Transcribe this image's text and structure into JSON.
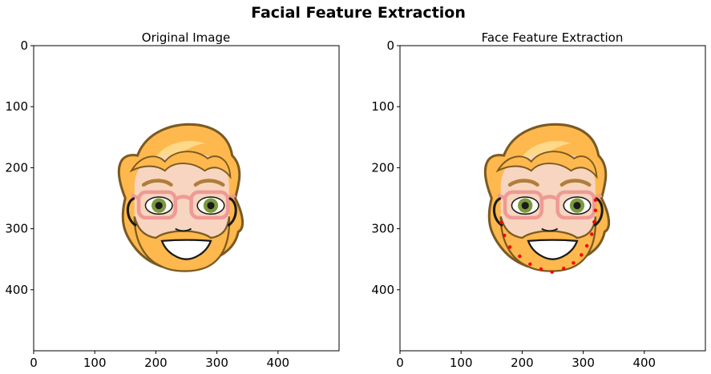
{
  "figure": {
    "suptitle": "Facial Feature Extraction"
  },
  "chart_data": [
    {
      "type": "image",
      "title": "Original Image",
      "xlim": [
        0,
        500
      ],
      "ylim": [
        500,
        0
      ],
      "xticks": [
        0,
        100,
        200,
        300,
        400
      ],
      "yticks": [
        0,
        100,
        200,
        300,
        400
      ],
      "image": "cartoon face: orange hair, pink glasses, orange beard",
      "points": []
    },
    {
      "type": "scatter",
      "title": "Face Feature Extraction",
      "xlim": [
        0,
        500
      ],
      "ylim": [
        500,
        0
      ],
      "xticks": [
        0,
        100,
        200,
        300,
        400
      ],
      "yticks": [
        0,
        100,
        200,
        300,
        400
      ],
      "image": "cartoon face: orange hair, pink glasses, orange beard",
      "marker_color": "#ff0000",
      "points": [
        {
          "x": 166,
          "y": 290
        },
        {
          "x": 171,
          "y": 311
        },
        {
          "x": 180,
          "y": 330
        },
        {
          "x": 196,
          "y": 345
        },
        {
          "x": 213,
          "y": 358
        },
        {
          "x": 231,
          "y": 366
        },
        {
          "x": 249,
          "y": 371
        },
        {
          "x": 268,
          "y": 365
        },
        {
          "x": 284,
          "y": 356
        },
        {
          "x": 297,
          "y": 343
        },
        {
          "x": 306,
          "y": 328
        },
        {
          "x": 314,
          "y": 309
        },
        {
          "x": 318,
          "y": 289
        },
        {
          "x": 320,
          "y": 270
        },
        {
          "x": 320,
          "y": 253
        }
      ]
    }
  ],
  "colors": {
    "hair": "#ffb84d",
    "hair_outline": "#7a5a22",
    "hair_highlight": "#ffd98a",
    "skin": "#f7d5c0",
    "brow": "#b07e3a",
    "glasses": "#ef9a94",
    "iris": "#7c9a3c",
    "pupil": "#1a1a1a",
    "mouth": "#1a1a1a",
    "teeth": "#ffffff"
  }
}
